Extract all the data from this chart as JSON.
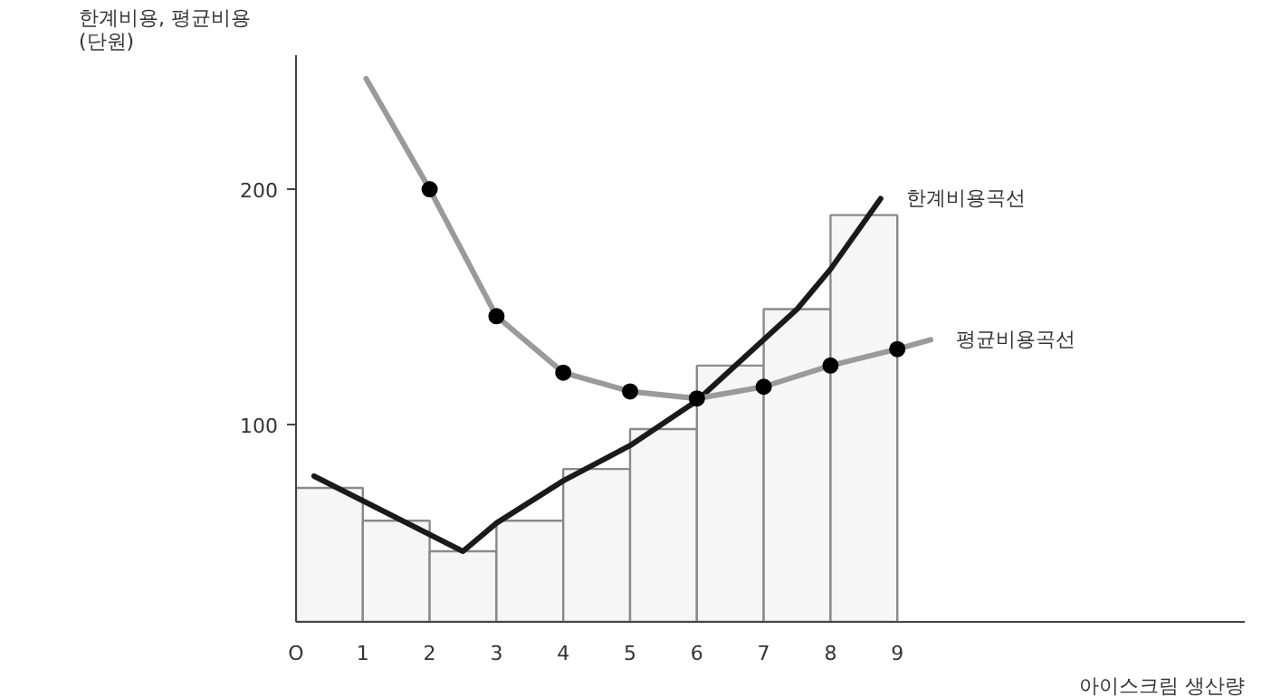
{
  "chart_data": {
    "type": "histogram",
    "xlabel": "아이스크림 생산량",
    "ylabel": "한계비용, 평균비용\n(단원)",
    "xlim": [
      0,
      14.2
    ],
    "ylim": [
      16,
      257
    ],
    "xticks": [
      {
        "value": 0,
        "label": "O"
      },
      1,
      2,
      3,
      4,
      5,
      6,
      7,
      8,
      9
    ],
    "yticks": [
      100,
      200
    ],
    "grid": false,
    "series": [
      {
        "color": "#f6f6f6",
        "bins": [
          0,
          1,
          2,
          3,
          4,
          5,
          6,
          7,
          8,
          9
        ],
        "values": [
          73,
          59,
          46,
          59,
          81,
          98,
          125,
          149,
          189
        ]
      },
      {
        "type": "line",
        "name": "한계비용곡선",
        "color": "#1a1a1a",
        "marker": "none",
        "x": [
          0.27,
          2.5,
          3,
          4,
          5,
          6,
          7,
          7.5,
          8,
          8.75
        ],
        "values": [
          78,
          46,
          58,
          76,
          91,
          110,
          136,
          149,
          166,
          196
        ]
      },
      {
        "type": "line",
        "name": "평균비용곡선",
        "color": "#9a9a9a",
        "marker": "none",
        "x": [
          1.05,
          2,
          3,
          4,
          5,
          6,
          7,
          8,
          9,
          9.5
        ],
        "values": [
          247,
          200,
          146,
          122,
          114,
          111,
          116,
          125,
          132,
          136
        ]
      },
      {
        "type": "scatter",
        "color": "#000000",
        "marker": "circle",
        "x": [
          2,
          3,
          4,
          5,
          6,
          7,
          8,
          9
        ],
        "values": [
          200,
          146,
          122,
          114,
          111,
          116,
          125,
          132
        ]
      }
    ]
  }
}
